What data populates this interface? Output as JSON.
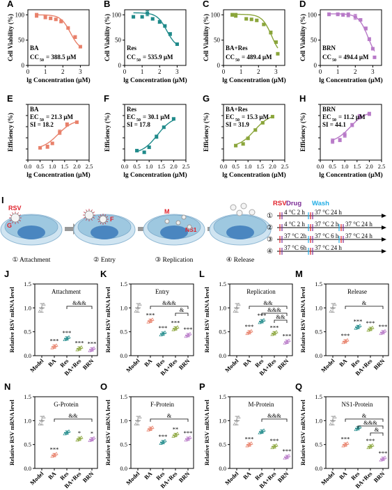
{
  "colors": {
    "BA": "#e8806a",
    "Res": "#1f8a8a",
    "BARes": "#8aa53a",
    "BRN": "#b87ac8",
    "model": "#999999",
    "rsv_red": "#e0202a",
    "drug_purple": "#7b2c96",
    "wash_cyan": "#22aee6",
    "stage_cell": "#9ec8e0",
    "stage_nucleus": "#4a86c0"
  },
  "cc50_panels": [
    {
      "letter": "A",
      "drug": "BA",
      "stat_value": "= 388.5 μM",
      "color_key": "BA",
      "points": [
        [
          0.5,
          99
        ],
        [
          1.0,
          95
        ],
        [
          1.3,
          93
        ],
        [
          1.6,
          91
        ],
        [
          1.9,
          87
        ],
        [
          2.3,
          74
        ],
        [
          2.7,
          56
        ],
        [
          3.0,
          37
        ]
      ],
      "errs": [
        4,
        3,
        2,
        2,
        3,
        2,
        3,
        2
      ]
    },
    {
      "letter": "B",
      "drug": "Res",
      "stat_value": "= 535.9 μM",
      "color_key": "Res",
      "points": [
        [
          0.5,
          96
        ],
        [
          1.0,
          96
        ],
        [
          1.3,
          103
        ],
        [
          1.6,
          92
        ],
        [
          2.0,
          86
        ],
        [
          2.3,
          78
        ],
        [
          2.6,
          62
        ],
        [
          3.0,
          42
        ]
      ],
      "errs": [
        2,
        2,
        5,
        2,
        3,
        2,
        3,
        2
      ]
    },
    {
      "letter": "C",
      "drug": "BA+Res",
      "stat_value": "= 489.4 μM",
      "color_key": "BARes",
      "points": [
        [
          0.5,
          100
        ],
        [
          0.7,
          99
        ],
        [
          1.3,
          92
        ],
        [
          1.6,
          91
        ],
        [
          1.9,
          89
        ],
        [
          2.3,
          81
        ],
        [
          2.7,
          65
        ],
        [
          3.0,
          46
        ],
        [
          3.1,
          23
        ]
      ],
      "errs": [
        3,
        4,
        2,
        2,
        2,
        2,
        3,
        2,
        2
      ]
    },
    {
      "letter": "D",
      "drug": "BRN",
      "stat_value": "= 494.4 μM",
      "color_key": "BRN",
      "points": [
        [
          0.5,
          101
        ],
        [
          1.0,
          101
        ],
        [
          1.3,
          100
        ],
        [
          1.6,
          100
        ],
        [
          2.0,
          96
        ],
        [
          2.3,
          90
        ],
        [
          2.6,
          73
        ],
        [
          2.8,
          52
        ],
        [
          3.0,
          33
        ],
        [
          3.1,
          16
        ]
      ],
      "errs": [
        3,
        3,
        3,
        4,
        5,
        2,
        3,
        3,
        2,
        2
      ]
    }
  ],
  "cc50_axes": {
    "ylabel": "Cell Viability (%)",
    "xlabel": "lg Concentration (μM)",
    "xlim": [
      0,
      3.5
    ],
    "ylim": [
      0,
      110
    ],
    "xticks": [
      "0",
      "1",
      "2",
      "3"
    ],
    "yticks": [
      "0",
      "50",
      "100"
    ],
    "stat_prefix": "CC"
  },
  "ec50_panels": [
    {
      "letter": "E",
      "drug": "BA",
      "stat_value": "= 21.3 μM",
      "si": "SI = 18.2",
      "color_key": "BA",
      "points": [
        [
          0.5,
          22
        ],
        [
          0.8,
          24
        ],
        [
          1.0,
          30
        ],
        [
          1.3,
          50
        ],
        [
          1.6,
          64
        ],
        [
          2.0,
          68
        ]
      ],
      "errs": [
        2,
        3,
        2,
        4,
        3,
        2
      ]
    },
    {
      "letter": "F",
      "drug": "Res",
      "stat_value": "= 30.1 μM",
      "si": "SI = 17.8",
      "color_key": "Res",
      "points": [
        [
          0.5,
          17
        ],
        [
          0.8,
          14
        ],
        [
          1.0,
          23
        ],
        [
          1.3,
          42
        ],
        [
          1.6,
          59
        ],
        [
          2.0,
          74
        ]
      ],
      "errs": [
        2,
        2,
        2,
        3,
        2,
        2
      ]
    },
    {
      "letter": "G",
      "drug": "BA+Res",
      "stat_value": "= 15.3 μM",
      "si": "SI = 31.9",
      "color_key": "BARes",
      "points": [
        [
          0.5,
          26
        ],
        [
          0.8,
          29
        ],
        [
          1.0,
          39
        ],
        [
          1.3,
          54
        ],
        [
          1.6,
          67
        ],
        [
          2.0,
          78
        ]
      ],
      "errs": [
        2,
        2,
        2,
        2,
        2,
        2
      ]
    },
    {
      "letter": "H",
      "drug": "BRN",
      "stat_value": "= 11.2 μM",
      "si": "SI = 44.1",
      "color_key": "BRN",
      "points": [
        [
          0.5,
          34
        ],
        [
          0.8,
          36
        ],
        [
          1.0,
          45
        ],
        [
          1.3,
          63
        ],
        [
          1.6,
          78
        ],
        [
          2.0,
          83
        ]
      ],
      "errs": [
        4,
        3,
        4,
        3,
        4,
        3
      ]
    }
  ],
  "ec50_axes": {
    "ylabel": "Efficiency (%)",
    "xlabel": "lg Concentration (μM)",
    "xlim": [
      0,
      2.5
    ],
    "ylim": [
      0,
      100
    ],
    "xticks": [
      "0.0",
      "0.5",
      "1.0",
      "1.5",
      "2.0",
      "2.5"
    ],
    "stat_prefix": "EC"
  },
  "schematic": {
    "letter": "I",
    "stages": [
      {
        "num": "①",
        "label": "Attachment"
      },
      {
        "num": "②",
        "label": "Entry"
      },
      {
        "num": "③",
        "label": "Replication"
      },
      {
        "num": "④",
        "label": "Release"
      }
    ],
    "cell_labels": {
      "rsv": "RSV",
      "g": "G",
      "f": "F",
      "m": "M",
      "ns1": "NS1"
    },
    "legend": {
      "rsv": "RSV",
      "drug": "Drug",
      "wash": "Wash"
    },
    "protocols": [
      {
        "num": "①",
        "segments": [
          "4 °C 2 h",
          "37 °C 24 h"
        ]
      },
      {
        "num": "②",
        "segments": [
          "4 °C 2 h",
          "37 °C 2 h",
          "37 °C 24 h"
        ]
      },
      {
        "num": "③",
        "segments": [
          "37 °C 2h",
          "37 °C 6 h",
          "37 °C 24 h"
        ]
      },
      {
        "num": "④",
        "segments": [
          "37 °C 6h",
          "37 °C 24 h"
        ]
      }
    ]
  },
  "chart_data": [
    {
      "type": "line",
      "panel": "A",
      "xlabel": "lg Concentration (μM)",
      "ylabel": "Cell Viability (%)",
      "series": [
        {
          "name": "BA",
          "x": [
            0.5,
            1.0,
            1.3,
            1.6,
            1.9,
            2.3,
            2.7,
            3.0
          ],
          "y": [
            99,
            95,
            93,
            91,
            87,
            74,
            56,
            37
          ]
        }
      ],
      "annotation": "BA CC50 = 388.5 μM"
    },
    {
      "type": "line",
      "panel": "B",
      "xlabel": "lg Concentration (μM)",
      "ylabel": "Cell Viability (%)",
      "series": [
        {
          "name": "Res",
          "x": [
            0.5,
            1.0,
            1.3,
            1.6,
            2.0,
            2.3,
            2.6,
            3.0
          ],
          "y": [
            96,
            96,
            103,
            92,
            86,
            78,
            62,
            42
          ]
        }
      ],
      "annotation": "Res CC50 = 535.9 μM"
    },
    {
      "type": "line",
      "panel": "C",
      "xlabel": "lg Concentration (μM)",
      "ylabel": "Cell Viability (%)",
      "series": [
        {
          "name": "BA+Res",
          "x": [
            0.5,
            0.7,
            1.3,
            1.6,
            1.9,
            2.3,
            2.7,
            3.0,
            3.1
          ],
          "y": [
            100,
            99,
            92,
            91,
            89,
            81,
            65,
            46,
            23
          ]
        }
      ],
      "annotation": "BA+Res CC50 = 489.4 μM"
    },
    {
      "type": "line",
      "panel": "D",
      "xlabel": "lg Concentration (μM)",
      "ylabel": "Cell Viability (%)",
      "series": [
        {
          "name": "BRN",
          "x": [
            0.5,
            1.0,
            1.3,
            1.6,
            2.0,
            2.3,
            2.6,
            2.8,
            3.0,
            3.1
          ],
          "y": [
            101,
            101,
            100,
            100,
            96,
            90,
            73,
            52,
            33,
            16
          ]
        }
      ],
      "annotation": "BRN CC50 = 494.4 μM"
    },
    {
      "type": "line",
      "panel": "E",
      "xlabel": "lg Concentration (μM)",
      "ylabel": "Efficiency (%)",
      "series": [
        {
          "name": "BA",
          "x": [
            0.5,
            0.8,
            1.0,
            1.3,
            1.6,
            2.0
          ],
          "y": [
            22,
            24,
            30,
            50,
            64,
            68
          ]
        }
      ],
      "annotation": "BA EC50 = 21.3 μM, SI = 18.2"
    },
    {
      "type": "line",
      "panel": "F",
      "xlabel": "lg Concentration (μM)",
      "ylabel": "Efficiency (%)",
      "series": [
        {
          "name": "Res",
          "x": [
            0.5,
            0.8,
            1.0,
            1.3,
            1.6,
            2.0
          ],
          "y": [
            17,
            14,
            23,
            42,
            59,
            74
          ]
        }
      ],
      "annotation": "Res EC50 = 30.1 μM, SI = 17.8"
    },
    {
      "type": "line",
      "panel": "G",
      "xlabel": "lg Concentration (μM)",
      "ylabel": "Efficiency (%)",
      "series": [
        {
          "name": "BA+Res",
          "x": [
            0.5,
            0.8,
            1.0,
            1.3,
            1.6,
            2.0
          ],
          "y": [
            26,
            29,
            39,
            54,
            67,
            78
          ]
        }
      ],
      "annotation": "BA+Res EC50 = 15.3 μM, SI = 31.9"
    },
    {
      "type": "line",
      "panel": "H",
      "xlabel": "lg Concentration (μM)",
      "ylabel": "Efficiency (%)",
      "series": [
        {
          "name": "BRN",
          "x": [
            0.5,
            0.8,
            1.0,
            1.3,
            1.6,
            2.0
          ],
          "y": [
            34,
            36,
            45,
            63,
            78,
            83
          ]
        }
      ],
      "annotation": "BRN EC50 = 11.2 μM, SI = 44.1"
    },
    {
      "type": "scatter",
      "panel": "J",
      "title": "Attachment",
      "ylabel": "Relative RSV mRNA level",
      "ylim": [
        0,
        1.5
      ],
      "categories": [
        "Model",
        "BA",
        "Res",
        "BA+Res",
        "BRN"
      ],
      "means": [
        1.0,
        0.19,
        0.36,
        0.15,
        0.13
      ],
      "stars": [
        "",
        "***",
        "***",
        "***",
        "***"
      ],
      "brackets": [
        {
          "from": 2,
          "to": 4,
          "label": "&&&"
        }
      ]
    },
    {
      "type": "scatter",
      "panel": "K",
      "title": "Entry",
      "ylabel": "Relative RSV mRNA level",
      "ylim": [
        0,
        1.5
      ],
      "categories": [
        "Model",
        "BA",
        "Res",
        "BA+Res",
        "BRN"
      ],
      "means": [
        1.0,
        0.73,
        0.46,
        0.57,
        0.43
      ],
      "stars": [
        "",
        "***",
        "***",
        "***",
        "***"
      ],
      "brackets": [
        {
          "from": 1,
          "to": 4,
          "label": "&&&"
        },
        {
          "from": 3,
          "to": 4,
          "label": "&"
        }
      ]
    },
    {
      "type": "scatter",
      "panel": "L",
      "title": "Replication",
      "ylabel": "Relative RSV mRNA level",
      "ylim": [
        0,
        1.5
      ],
      "categories": [
        "Model",
        "BA",
        "Res",
        "BA+Res",
        "BRN"
      ],
      "means": [
        1.0,
        0.49,
        0.72,
        0.47,
        0.29
      ],
      "stars": [
        "",
        "***",
        "***",
        "***",
        "***"
      ],
      "brackets": [
        {
          "from": 1,
          "to": 4,
          "label": "&&"
        },
        {
          "from": 2,
          "to": 4,
          "label": "&&&"
        },
        {
          "from": 3,
          "to": 4,
          "label": "&&"
        }
      ]
    },
    {
      "type": "scatter",
      "panel": "M",
      "title": "Release",
      "ylabel": "Relative RSV mRNA level",
      "ylim": [
        0,
        1.5
      ],
      "categories": [
        "Model",
        "BA",
        "Res",
        "BA+Res",
        "BRN"
      ],
      "means": [
        1.0,
        0.3,
        0.6,
        0.56,
        0.49
      ],
      "stars": [
        "",
        "***",
        "***",
        "***",
        "***"
      ],
      "brackets": [
        {
          "from": 1,
          "to": 4,
          "label": "&"
        }
      ]
    },
    {
      "type": "scatter",
      "panel": "N",
      "title": "G-Protein",
      "ylabel": "Relative RSV mRNA level",
      "ylim": [
        0,
        1.5
      ],
      "categories": [
        "Model",
        "BA",
        "Res",
        "BA+Res",
        "BRN"
      ],
      "means": [
        1.0,
        0.28,
        0.75,
        0.62,
        0.61
      ],
      "stars": [
        "",
        "***",
        "",
        "*",
        "*"
      ],
      "brackets": [
        {
          "from": 1,
          "to": 4,
          "label": "&&"
        }
      ]
    },
    {
      "type": "scatter",
      "panel": "O",
      "title": "F-Protein",
      "ylabel": "Relative RSV mRNA level",
      "ylim": [
        0,
        1.5
      ],
      "categories": [
        "Model",
        "BA",
        "Res",
        "BA+Res",
        "BRN"
      ],
      "means": [
        1.0,
        0.83,
        0.55,
        0.7,
        0.62
      ],
      "stars": [
        "",
        "",
        "***",
        "**",
        "***"
      ],
      "brackets": [
        {
          "from": 1,
          "to": 4,
          "label": "&"
        }
      ]
    },
    {
      "type": "scatter",
      "panel": "P",
      "title": "M-Protein",
      "ylabel": "Relative RSV mRNA level",
      "ylim": [
        0,
        1.5
      ],
      "categories": [
        "Model",
        "BA",
        "Res",
        "BA+Res",
        "BRN"
      ],
      "means": [
        1.0,
        0.5,
        0.77,
        0.46,
        0.24
      ],
      "stars": [
        "",
        "***",
        "",
        "***",
        "***"
      ],
      "brackets": [
        {
          "from": 2,
          "to": 4,
          "label": "&&&"
        }
      ]
    },
    {
      "type": "scatter",
      "panel": "Q",
      "title": "NS1-Protein",
      "ylabel": "Relative RSV mRNA level",
      "ylim": [
        0,
        1.5
      ],
      "categories": [
        "Model",
        "BA",
        "Res",
        "BA+Res",
        "BRN"
      ],
      "means": [
        1.0,
        0.5,
        0.84,
        0.46,
        0.2
      ],
      "stars": [
        "",
        "***",
        "",
        "***",
        "***"
      ],
      "brackets": [
        {
          "from": 1,
          "to": 4,
          "label": "&"
        },
        {
          "from": 2,
          "to": 4,
          "label": "&&&"
        },
        {
          "from": 3,
          "to": 4,
          "label": "&"
        }
      ]
    }
  ],
  "qpcr_axes": {
    "yticks": [
      "0.0",
      "0.5",
      "1.0",
      "1.5"
    ]
  }
}
